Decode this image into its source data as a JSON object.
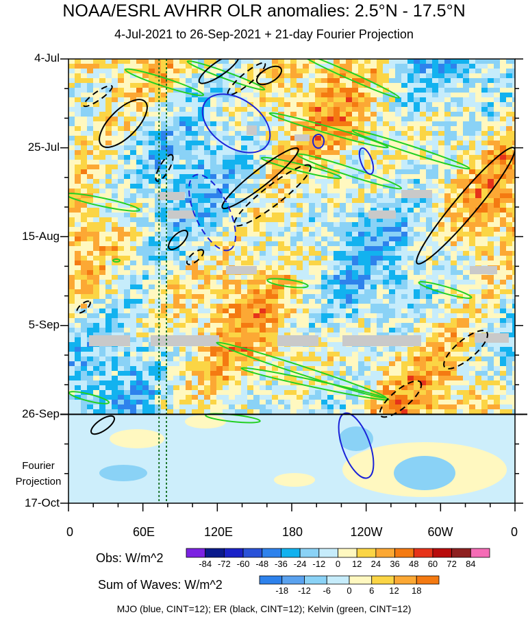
{
  "chart_data": {
    "type": "heatmap",
    "title": "NOAA/ESRL AVHRR OLR anomalies: 2.5°N - 17.5°N",
    "subtitle": "4-Jul-2021 to 26-Sep-2021 + 21-day Fourier Projection",
    "y_ticks": [
      "4-Jul",
      "25-Jul",
      "15-Aug",
      "5-Sep",
      "26-Sep",
      "17-Oct"
    ],
    "y_extra_label": [
      "Fourier",
      "Projection"
    ],
    "x_ticks": [
      "0",
      "60E",
      "120E",
      "180",
      "120W",
      "60W",
      "0"
    ],
    "x_range_deg": [
      0,
      360
    ],
    "y_range_days": [
      0,
      105
    ],
    "obs_end_day": 84,
    "dotted_lines_lon": [
      73,
      79
    ],
    "obs_colorbar": {
      "label": "Obs: W/m^2",
      "ticks": [
        "-84",
        "-72",
        "-60",
        "-48",
        "-36",
        "-24",
        "-12",
        "0",
        "12",
        "24",
        "36",
        "48",
        "60",
        "72",
        "84"
      ],
      "colors": [
        "#7b22e2",
        "#0a1a8c",
        "#1a22c8",
        "#2a52d8",
        "#2e82ec",
        "#12b2ef",
        "#8ad2f6",
        "#c6ecfb",
        "#fff8c0",
        "#fbd545",
        "#fca834",
        "#f47a12",
        "#e6331a",
        "#b80c0c",
        "#8e2020",
        "#f56cb6"
      ]
    },
    "waves_colorbar": {
      "label": "Sum of Waves: W/m^2",
      "ticks": [
        "-18",
        "-12",
        "-6",
        "0",
        "6",
        "12",
        "18"
      ],
      "colors": [
        "#2e82ec",
        "#5aa2ef",
        "#8ad2f6",
        "#c6ecfb",
        "#fff8c0",
        "#fbd545",
        "#fca834",
        "#f47a12"
      ]
    },
    "contour_legend": "MJO (blue, CINT=12); ER (black, CINT=12); Kelvin (green, CINT=12)",
    "series": [
      {
        "name": "MJO",
        "color": "#1a22d8"
      },
      {
        "name": "ER",
        "color": "#000000"
      },
      {
        "name": "Kelvin",
        "color": "#22d022"
      }
    ]
  }
}
